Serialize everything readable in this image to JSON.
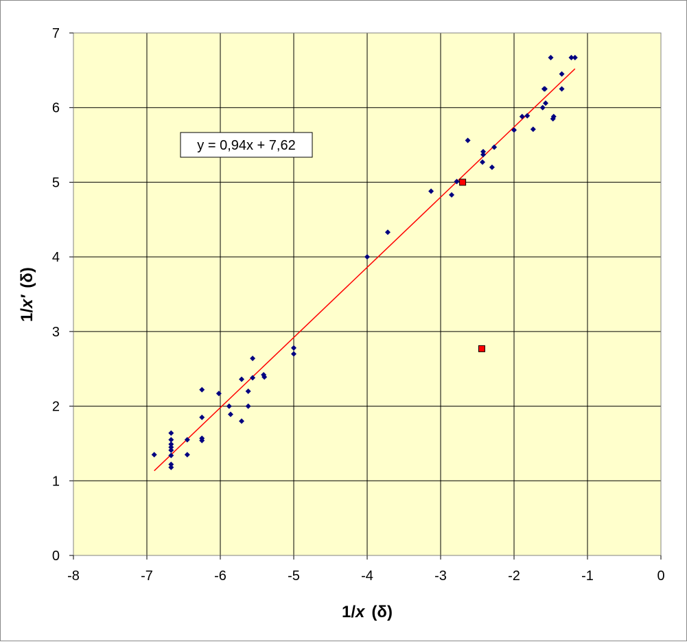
{
  "chart_data": {
    "type": "scatter",
    "xlabel": {
      "prefix": "1/",
      "var": "x",
      "unit": "(δ)"
    },
    "ylabel": {
      "prefix": "1/",
      "var": "x′",
      "unit": "(δ)"
    },
    "xlim": [
      -8,
      0
    ],
    "ylim": [
      0,
      7
    ],
    "x_ticks": [
      -8,
      -7,
      -6,
      -5,
      -4,
      -3,
      -2,
      -1,
      0
    ],
    "y_ticks": [
      0,
      1,
      2,
      3,
      4,
      5,
      6,
      7
    ],
    "grid": true,
    "plot_background": "#ffffcc",
    "series": [
      {
        "marker": "diamond",
        "color": "#000080",
        "points": [
          [
            -6.9,
            1.35
          ],
          [
            -6.67,
            1.64
          ],
          [
            -6.67,
            1.55
          ],
          [
            -6.67,
            1.49
          ],
          [
            -6.67,
            1.45
          ],
          [
            -6.67,
            1.41
          ],
          [
            -6.67,
            1.34
          ],
          [
            -6.67,
            1.22
          ],
          [
            -6.67,
            1.18
          ],
          [
            -6.45,
            1.55
          ],
          [
            -6.45,
            1.35
          ],
          [
            -6.25,
            2.22
          ],
          [
            -6.25,
            1.85
          ],
          [
            -6.25,
            1.57
          ],
          [
            -6.25,
            1.54
          ],
          [
            -6.02,
            2.17
          ],
          [
            -5.88,
            2.0
          ],
          [
            -5.86,
            1.89
          ],
          [
            -5.71,
            2.36
          ],
          [
            -5.71,
            1.8
          ],
          [
            -5.62,
            2.2
          ],
          [
            -5.62,
            2.0
          ],
          [
            -5.56,
            2.64
          ],
          [
            -5.56,
            2.38
          ],
          [
            -5.41,
            2.42
          ],
          [
            -5.4,
            2.39
          ],
          [
            -5.0,
            2.78
          ],
          [
            -5.0,
            2.7
          ],
          [
            -4.0,
            4.0
          ],
          [
            -3.72,
            4.33
          ],
          [
            -3.13,
            4.88
          ],
          [
            -2.85,
            4.83
          ],
          [
            -2.78,
            5.01
          ],
          [
            -2.63,
            5.56
          ],
          [
            -2.42,
            5.41
          ],
          [
            -2.42,
            5.37
          ],
          [
            -2.43,
            5.27
          ],
          [
            -2.3,
            5.2
          ],
          [
            -2.27,
            5.47
          ],
          [
            -2.0,
            5.7
          ],
          [
            -1.89,
            5.88
          ],
          [
            -1.82,
            5.89
          ],
          [
            -1.74,
            5.71
          ],
          [
            -1.61,
            6.0
          ],
          [
            -1.59,
            6.25
          ],
          [
            -1.58,
            6.25
          ],
          [
            -1.57,
            6.06
          ],
          [
            -1.5,
            6.67
          ],
          [
            -1.47,
            5.85
          ],
          [
            -1.46,
            5.88
          ],
          [
            -1.35,
            6.45
          ],
          [
            -1.35,
            6.25
          ],
          [
            -1.22,
            6.67
          ],
          [
            -1.17,
            6.67
          ]
        ]
      },
      {
        "marker": "square",
        "color": "#ff0000",
        "points": [
          [
            -2.7,
            5.0
          ],
          [
            -2.44,
            2.77
          ]
        ]
      }
    ],
    "trendline": {
      "color": "#ff0000",
      "slope": 0.94,
      "intercept": 7.62,
      "x_range": [
        -6.9,
        -1.17
      ],
      "equation_label": "y = 0,94x + 7,62"
    }
  }
}
